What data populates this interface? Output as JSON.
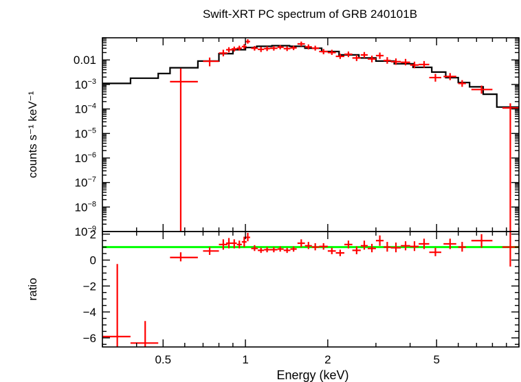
{
  "chart_data": [
    {
      "type": "scatter",
      "panel": "spectrum",
      "title": "Swift-XRT PC spectrum of GRB 240101B",
      "xlabel": "Energy (keV)",
      "ylabel": "counts s⁻¹ keV⁻¹",
      "xscale": "log",
      "yscale": "log",
      "xlim": [
        0.3,
        10
      ],
      "ylim": [
        1e-09,
        0.08
      ],
      "x_ticks": [
        {
          "value": 0.5,
          "label": "0.5"
        },
        {
          "value": 1,
          "label": "1"
        },
        {
          "value": 2,
          "label": "2"
        },
        {
          "value": 5,
          "label": "5"
        }
      ],
      "y_ticks": [
        {
          "value": 0.01,
          "label": "0.01"
        },
        {
          "value": 0.001,
          "base": "10",
          "exp": "−3"
        },
        {
          "value": 0.0001,
          "base": "10",
          "exp": "−4"
        },
        {
          "value": 1e-05,
          "base": "10",
          "exp": "−5"
        },
        {
          "value": 1e-06,
          "base": "10",
          "exp": "−6"
        },
        {
          "value": 1e-07,
          "base": "10",
          "exp": "−7"
        },
        {
          "value": 1e-08,
          "base": "10",
          "exp": "−8"
        },
        {
          "value": 1e-09,
          "base": "10",
          "exp": "−9"
        }
      ],
      "model": {
        "name": "model",
        "color": "#000000",
        "steps": [
          {
            "x0": 0.3,
            "x1": 0.38,
            "y": 0.0011
          },
          {
            "x0": 0.38,
            "x1": 0.48,
            "y": 0.0018
          },
          {
            "x0": 0.48,
            "x1": 0.53,
            "y": 0.0028
          },
          {
            "x0": 0.53,
            "x1": 0.67,
            "y": 0.0048
          },
          {
            "x0": 0.67,
            "x1": 0.8,
            "y": 0.009
          },
          {
            "x0": 0.8,
            "x1": 0.9,
            "y": 0.018
          },
          {
            "x0": 0.9,
            "x1": 1.0,
            "y": 0.026
          },
          {
            "x0": 1.0,
            "x1": 1.1,
            "y": 0.032
          },
          {
            "x0": 1.1,
            "x1": 1.25,
            "y": 0.036
          },
          {
            "x0": 1.25,
            "x1": 1.45,
            "y": 0.038
          },
          {
            "x0": 1.45,
            "x1": 1.65,
            "y": 0.036
          },
          {
            "x0": 1.65,
            "x1": 1.9,
            "y": 0.03
          },
          {
            "x0": 1.9,
            "x1": 2.2,
            "y": 0.022
          },
          {
            "x0": 2.2,
            "x1": 2.6,
            "y": 0.016
          },
          {
            "x0": 2.6,
            "x1": 3.0,
            "y": 0.012
          },
          {
            "x0": 3.0,
            "x1": 3.5,
            "y": 0.009
          },
          {
            "x0": 3.5,
            "x1": 4.1,
            "y": 0.007
          },
          {
            "x0": 4.1,
            "x1": 4.8,
            "y": 0.005
          },
          {
            "x0": 4.8,
            "x1": 5.4,
            "y": 0.0032
          },
          {
            "x0": 5.4,
            "x1": 6.0,
            "y": 0.0019
          },
          {
            "x0": 6.0,
            "x1": 6.6,
            "y": 0.0012
          },
          {
            "x0": 6.6,
            "x1": 7.4,
            "y": 0.0008
          },
          {
            "x0": 7.4,
            "x1": 8.3,
            "y": 0.0004
          },
          {
            "x0": 8.3,
            "x1": 10,
            "y": 0.00012
          }
        ]
      },
      "data": {
        "name": "data",
        "color": "#ff0000",
        "points": [
          {
            "x": 0.58,
            "xlo": 0.53,
            "xhi": 0.67,
            "y": 0.0013,
            "ylo": 1e-09,
            "yhi": 0.0045
          },
          {
            "x": 0.74,
            "xlo": 0.7,
            "xhi": 0.8,
            "y": 0.0088,
            "ylo": 0.0055,
            "yhi": 0.0125
          },
          {
            "x": 0.83,
            "xlo": 0.8,
            "xhi": 0.86,
            "y": 0.019,
            "ylo": 0.014,
            "yhi": 0.026
          },
          {
            "x": 0.87,
            "xlo": 0.85,
            "xhi": 0.9,
            "y": 0.026,
            "ylo": 0.02,
            "yhi": 0.033
          },
          {
            "x": 0.91,
            "xlo": 0.89,
            "xhi": 0.93,
            "y": 0.028,
            "ylo": 0.022,
            "yhi": 0.035
          },
          {
            "x": 0.95,
            "xlo": 0.93,
            "xhi": 0.97,
            "y": 0.03,
            "ylo": 0.024,
            "yhi": 0.038
          },
          {
            "x": 0.99,
            "xlo": 0.97,
            "xhi": 1.01,
            "y": 0.035,
            "ylo": 0.028,
            "yhi": 0.044
          },
          {
            "x": 1.02,
            "xlo": 1.0,
            "xhi": 1.04,
            "y": 0.056,
            "ylo": 0.046,
            "yhi": 0.07
          },
          {
            "x": 1.08,
            "xlo": 1.05,
            "xhi": 1.11,
            "y": 0.03,
            "ylo": 0.024,
            "yhi": 0.037
          },
          {
            "x": 1.14,
            "xlo": 1.11,
            "xhi": 1.17,
            "y": 0.027,
            "ylo": 0.021,
            "yhi": 0.034
          },
          {
            "x": 1.2,
            "xlo": 1.17,
            "xhi": 1.23,
            "y": 0.029,
            "ylo": 0.023,
            "yhi": 0.036
          },
          {
            "x": 1.27,
            "xlo": 1.23,
            "xhi": 1.31,
            "y": 0.03,
            "ylo": 0.024,
            "yhi": 0.037
          },
          {
            "x": 1.34,
            "xlo": 1.31,
            "xhi": 1.38,
            "y": 0.033,
            "ylo": 0.027,
            "yhi": 0.04
          },
          {
            "x": 1.42,
            "xlo": 1.38,
            "xhi": 1.46,
            "y": 0.029,
            "ylo": 0.023,
            "yhi": 0.036
          },
          {
            "x": 1.5,
            "xlo": 1.46,
            "xhi": 1.54,
            "y": 0.031,
            "ylo": 0.025,
            "yhi": 0.038
          },
          {
            "x": 1.6,
            "xlo": 1.55,
            "xhi": 1.65,
            "y": 0.045,
            "ylo": 0.036,
            "yhi": 0.056
          },
          {
            "x": 1.7,
            "xlo": 1.65,
            "xhi": 1.75,
            "y": 0.034,
            "ylo": 0.027,
            "yhi": 0.043
          },
          {
            "x": 1.8,
            "xlo": 1.75,
            "xhi": 1.86,
            "y": 0.03,
            "ylo": 0.024,
            "yhi": 0.038
          },
          {
            "x": 1.93,
            "xlo": 1.86,
            "xhi": 2.0,
            "y": 0.022,
            "ylo": 0.017,
            "yhi": 0.028
          },
          {
            "x": 2.07,
            "xlo": 2.0,
            "xhi": 2.14,
            "y": 0.02,
            "ylo": 0.016,
            "yhi": 0.026
          },
          {
            "x": 2.22,
            "xlo": 2.14,
            "xhi": 2.3,
            "y": 0.014,
            "ylo": 0.011,
            "yhi": 0.018
          },
          {
            "x": 2.38,
            "xlo": 2.3,
            "xhi": 2.46,
            "y": 0.017,
            "ylo": 0.013,
            "yhi": 0.022
          },
          {
            "x": 2.55,
            "xlo": 2.46,
            "xhi": 2.64,
            "y": 0.012,
            "ylo": 0.009,
            "yhi": 0.016
          },
          {
            "x": 2.72,
            "xlo": 2.64,
            "xhi": 2.8,
            "y": 0.016,
            "ylo": 0.012,
            "yhi": 0.021
          },
          {
            "x": 2.9,
            "xlo": 2.8,
            "xhi": 3.0,
            "y": 0.011,
            "ylo": 0.008,
            "yhi": 0.015
          },
          {
            "x": 3.1,
            "xlo": 3.0,
            "xhi": 3.2,
            "y": 0.015,
            "ylo": 0.011,
            "yhi": 0.02
          },
          {
            "x": 3.3,
            "xlo": 3.2,
            "xhi": 3.4,
            "y": 0.0095,
            "ylo": 0.007,
            "yhi": 0.013
          },
          {
            "x": 3.55,
            "xlo": 3.4,
            "xhi": 3.7,
            "y": 0.0085,
            "ylo": 0.0063,
            "yhi": 0.0115
          },
          {
            "x": 3.85,
            "xlo": 3.7,
            "xhi": 4.0,
            "y": 0.008,
            "ylo": 0.006,
            "yhi": 0.011
          },
          {
            "x": 4.15,
            "xlo": 4.0,
            "xhi": 4.3,
            "y": 0.0062,
            "ylo": 0.0046,
            "yhi": 0.0085
          },
          {
            "x": 4.5,
            "xlo": 4.3,
            "xhi": 4.7,
            "y": 0.0065,
            "ylo": 0.0048,
            "yhi": 0.009
          },
          {
            "x": 4.95,
            "xlo": 4.7,
            "xhi": 5.2,
            "y": 0.0019,
            "ylo": 0.0013,
            "yhi": 0.0027
          },
          {
            "x": 5.6,
            "xlo": 5.3,
            "xhi": 5.9,
            "y": 0.0021,
            "ylo": 0.0015,
            "yhi": 0.0029
          },
          {
            "x": 6.2,
            "xlo": 6.0,
            "xhi": 6.4,
            "y": 0.0011,
            "ylo": 0.0008,
            "yhi": 0.0015
          },
          {
            "x": 7.3,
            "xlo": 6.7,
            "xhi": 8.0,
            "y": 0.00062,
            "ylo": 0.00042,
            "yhi": 0.0009
          },
          {
            "x": 9.3,
            "xlo": 8.7,
            "xhi": 10,
            "y": 0.00011,
            "ylo": 1e-09,
            "yhi": 0.00017
          }
        ]
      }
    },
    {
      "type": "scatter",
      "panel": "ratio",
      "xlabel": "Energy (keV)",
      "ylabel": "ratio",
      "xscale": "log",
      "yscale": "linear",
      "xlim": [
        0.3,
        10
      ],
      "ylim": [
        -6.7,
        2.2
      ],
      "y_ticks": [
        {
          "value": 2,
          "label": "2"
        },
        {
          "value": 0,
          "label": "0"
        },
        {
          "value": -2,
          "label": "−2"
        },
        {
          "value": -4,
          "label": "−4"
        },
        {
          "value": -6,
          "label": "−6"
        }
      ],
      "reference_line": {
        "value": 1,
        "color": "#00ff00"
      },
      "data": {
        "name": "ratio",
        "color": "#ff0000",
        "points": [
          {
            "x": 0.34,
            "xlo": 0.3,
            "xhi": 0.38,
            "y": -5.9,
            "ylo": -6.7,
            "yhi": -0.3
          },
          {
            "x": 0.43,
            "xlo": 0.38,
            "xhi": 0.48,
            "y": -6.4,
            "ylo": -6.7,
            "yhi": -4.7
          },
          {
            "x": 0.58,
            "xlo": 0.53,
            "xhi": 0.67,
            "y": 0.2,
            "ylo": -0.1,
            "yhi": 0.6
          },
          {
            "x": 0.74,
            "xlo": 0.7,
            "xhi": 0.8,
            "y": 0.7,
            "ylo": 0.4,
            "yhi": 1.0
          },
          {
            "x": 0.83,
            "xlo": 0.8,
            "xhi": 0.86,
            "y": 1.2,
            "ylo": 0.8,
            "yhi": 1.6
          },
          {
            "x": 0.87,
            "xlo": 0.85,
            "xhi": 0.9,
            "y": 1.3,
            "ylo": 0.9,
            "yhi": 1.7
          },
          {
            "x": 0.91,
            "xlo": 0.89,
            "xhi": 0.93,
            "y": 1.3,
            "ylo": 0.9,
            "yhi": 1.6
          },
          {
            "x": 0.95,
            "xlo": 0.93,
            "xhi": 0.97,
            "y": 1.2,
            "ylo": 0.9,
            "yhi": 1.5
          },
          {
            "x": 0.99,
            "xlo": 0.97,
            "xhi": 1.01,
            "y": 1.4,
            "ylo": 1.0,
            "yhi": 1.8
          },
          {
            "x": 1.02,
            "xlo": 1.0,
            "xhi": 1.04,
            "y": 1.75,
            "ylo": 1.45,
            "yhi": 2.1
          },
          {
            "x": 1.08,
            "xlo": 1.05,
            "xhi": 1.11,
            "y": 0.9,
            "ylo": 0.7,
            "yhi": 1.15
          },
          {
            "x": 1.14,
            "xlo": 1.11,
            "xhi": 1.17,
            "y": 0.75,
            "ylo": 0.55,
            "yhi": 0.95
          },
          {
            "x": 1.2,
            "xlo": 1.17,
            "xhi": 1.23,
            "y": 0.8,
            "ylo": 0.6,
            "yhi": 1.0
          },
          {
            "x": 1.27,
            "xlo": 1.23,
            "xhi": 1.31,
            "y": 0.8,
            "ylo": 0.6,
            "yhi": 1.0
          },
          {
            "x": 1.34,
            "xlo": 1.31,
            "xhi": 1.38,
            "y": 0.85,
            "ylo": 0.65,
            "yhi": 1.05
          },
          {
            "x": 1.42,
            "xlo": 1.38,
            "xhi": 1.46,
            "y": 0.75,
            "ylo": 0.55,
            "yhi": 0.95
          },
          {
            "x": 1.5,
            "xlo": 1.46,
            "xhi": 1.54,
            "y": 0.85,
            "ylo": 0.65,
            "yhi": 1.05
          },
          {
            "x": 1.6,
            "xlo": 1.55,
            "xhi": 1.65,
            "y": 1.3,
            "ylo": 1.0,
            "yhi": 1.6
          },
          {
            "x": 1.7,
            "xlo": 1.65,
            "xhi": 1.75,
            "y": 1.1,
            "ylo": 0.85,
            "yhi": 1.4
          },
          {
            "x": 1.8,
            "xlo": 1.75,
            "xhi": 1.86,
            "y": 1.0,
            "ylo": 0.75,
            "yhi": 1.3
          },
          {
            "x": 1.93,
            "xlo": 1.86,
            "xhi": 2.0,
            "y": 1.05,
            "ylo": 0.8,
            "yhi": 1.3
          },
          {
            "x": 2.07,
            "xlo": 2.0,
            "xhi": 2.14,
            "y": 0.7,
            "ylo": 0.45,
            "yhi": 0.95
          },
          {
            "x": 2.22,
            "xlo": 2.14,
            "xhi": 2.3,
            "y": 0.55,
            "ylo": 0.3,
            "yhi": 0.8
          },
          {
            "x": 2.38,
            "xlo": 2.3,
            "xhi": 2.46,
            "y": 1.2,
            "ylo": 0.9,
            "yhi": 1.5
          },
          {
            "x": 2.55,
            "xlo": 2.46,
            "xhi": 2.64,
            "y": 0.75,
            "ylo": 0.45,
            "yhi": 1.05
          },
          {
            "x": 2.72,
            "xlo": 2.64,
            "xhi": 2.8,
            "y": 1.1,
            "ylo": 0.8,
            "yhi": 1.5
          },
          {
            "x": 2.9,
            "xlo": 2.8,
            "xhi": 3.0,
            "y": 0.9,
            "ylo": 0.6,
            "yhi": 1.25
          },
          {
            "x": 3.1,
            "xlo": 3.0,
            "xhi": 3.2,
            "y": 1.5,
            "ylo": 1.1,
            "yhi": 1.9
          },
          {
            "x": 3.3,
            "xlo": 3.2,
            "xhi": 3.4,
            "y": 1.0,
            "ylo": 0.65,
            "yhi": 1.4
          },
          {
            "x": 3.55,
            "xlo": 3.4,
            "xhi": 3.7,
            "y": 0.95,
            "ylo": 0.6,
            "yhi": 1.35
          },
          {
            "x": 3.85,
            "xlo": 3.7,
            "xhi": 4.0,
            "y": 1.1,
            "ylo": 0.75,
            "yhi": 1.45
          },
          {
            "x": 4.15,
            "xlo": 4.0,
            "xhi": 4.3,
            "y": 1.05,
            "ylo": 0.7,
            "yhi": 1.45
          },
          {
            "x": 4.5,
            "xlo": 4.3,
            "xhi": 4.7,
            "y": 1.25,
            "ylo": 0.85,
            "yhi": 1.65
          },
          {
            "x": 4.95,
            "xlo": 4.7,
            "xhi": 5.2,
            "y": 0.6,
            "ylo": 0.3,
            "yhi": 0.95
          },
          {
            "x": 5.6,
            "xlo": 5.3,
            "xhi": 5.9,
            "y": 1.25,
            "ylo": 0.85,
            "yhi": 1.65
          },
          {
            "x": 6.2,
            "xlo": 6.0,
            "xhi": 6.4,
            "y": 1.0,
            "ylo": 0.65,
            "yhi": 1.4
          },
          {
            "x": 7.3,
            "xlo": 6.7,
            "xhi": 8.0,
            "y": 1.5,
            "ylo": 0.95,
            "yhi": 2.0
          },
          {
            "x": 9.3,
            "xlo": 8.7,
            "xhi": 10,
            "y": 1.0,
            "ylo": -0.5,
            "yhi": 2.2
          }
        ]
      }
    }
  ]
}
